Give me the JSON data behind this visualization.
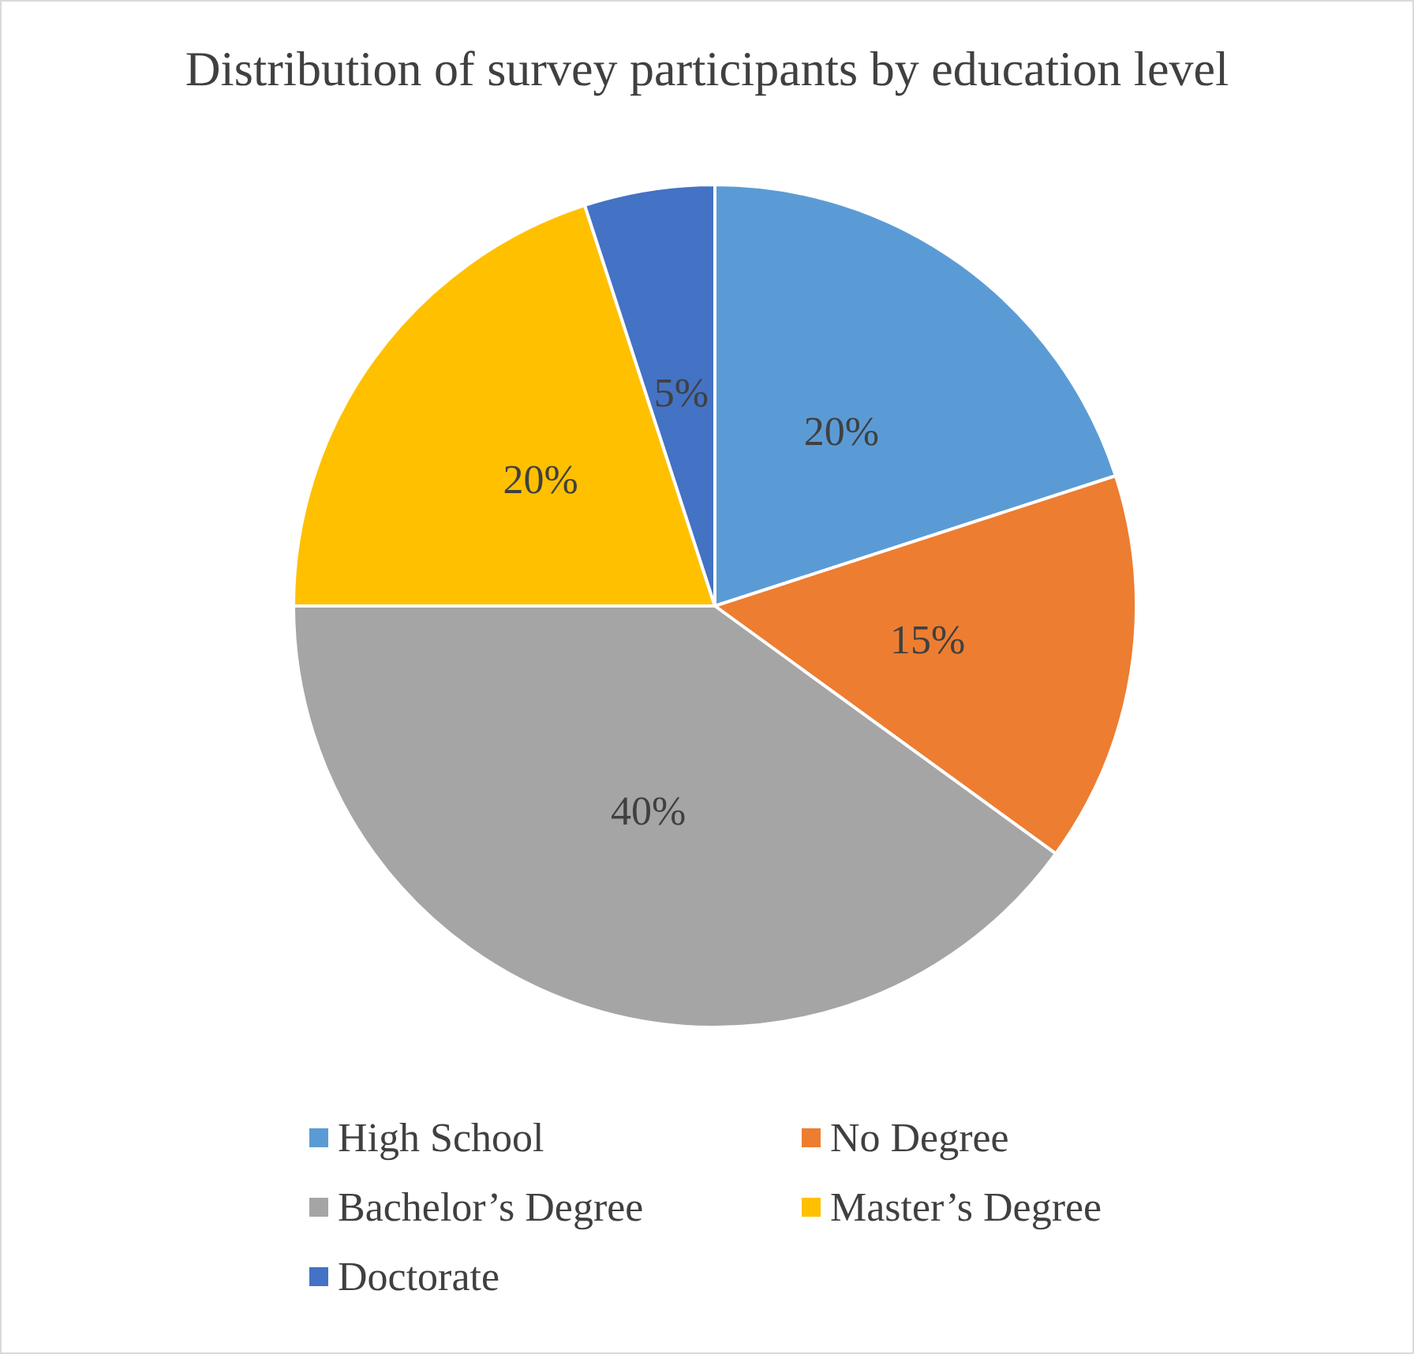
{
  "chart_data": {
    "type": "pie",
    "title": "Distribution of survey participants by education level",
    "categories": [
      "High School",
      "No Degree",
      "Bachelor’s Degree",
      "Master’s Degree",
      "Doctorate"
    ],
    "values": [
      20,
      15,
      40,
      20,
      5
    ],
    "colors": [
      "#5b9bd5",
      "#ed7d31",
      "#a5a5a5",
      "#ffc000",
      "#4472c4"
    ],
    "value_labels": [
      "20%",
      "15%",
      "40%",
      "20%",
      "5%"
    ],
    "legend": "bottom"
  }
}
